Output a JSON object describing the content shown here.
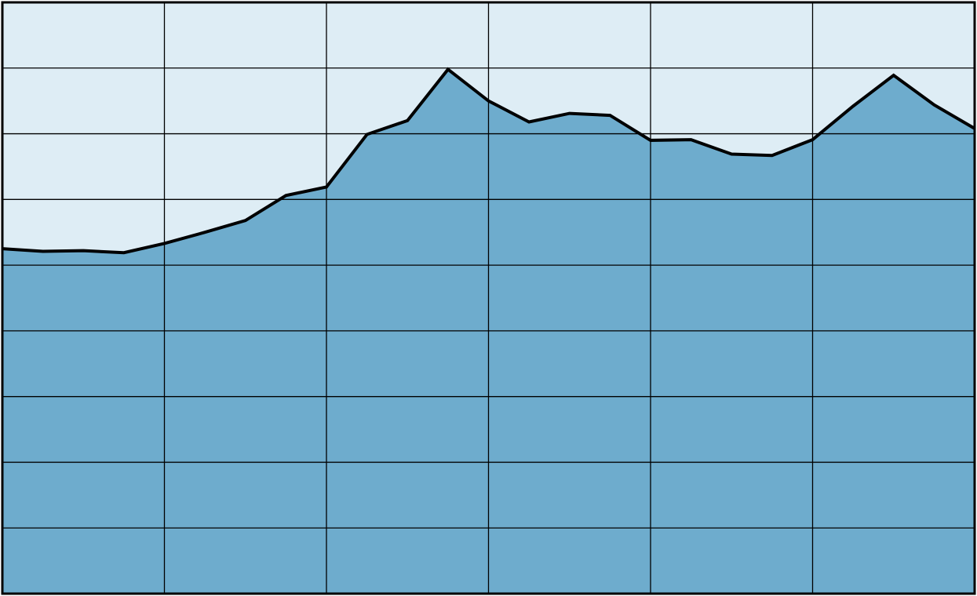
{
  "chart_data": {
    "type": "area",
    "title": "",
    "xlabel": "",
    "ylabel": "",
    "xlim": [
      0,
      24
    ],
    "ylim": [
      0,
      9
    ],
    "grid": true,
    "x": [
      0,
      1,
      2,
      3,
      4,
      5,
      6,
      7,
      8,
      9,
      10,
      11,
      12,
      13,
      14,
      15,
      16,
      17,
      18,
      19,
      20,
      21,
      22,
      23,
      24
    ],
    "series": [
      {
        "values": [
          5.25,
          5.21,
          5.22,
          5.19,
          5.33,
          5.5,
          5.68,
          6.06,
          6.19,
          6.99,
          7.2,
          7.98,
          7.5,
          7.18,
          7.31,
          7.28,
          6.9,
          6.91,
          6.69,
          6.67,
          6.91,
          7.42,
          7.89,
          7.44,
          7.08
        ]
      }
    ]
  },
  "style": {
    "background_color": "#deedf5",
    "fill_color": "#6eaccd",
    "line_color": "#000000",
    "grid_color": "#000000"
  }
}
